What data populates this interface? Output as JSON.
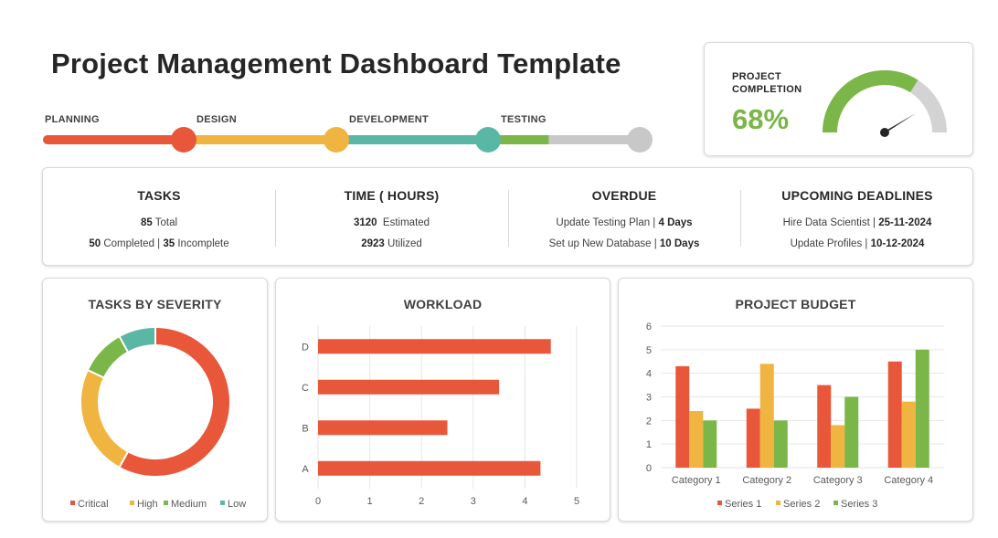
{
  "title": "Project Management Dashboard Template",
  "timeline": {
    "phases": [
      {
        "label": "PLANNING",
        "color": "#e8573a"
      },
      {
        "label": "DESIGN",
        "color": "#f0b440"
      },
      {
        "label": "DEVELOPMENT",
        "color": "#5bb7a5"
      },
      {
        "label": "TESTING",
        "color": "#7ab648"
      }
    ],
    "remaining_color": "#c8c8c8",
    "testing_progress": 0.4
  },
  "completion": {
    "title": "PROJECT COMPLETION",
    "value_text": "68%",
    "percent": 68,
    "fill_color": "#7ab648",
    "track_color": "#d3d3d3"
  },
  "stats": {
    "tasks": {
      "header": "TASKS",
      "total": "85",
      "total_label": "Total",
      "completed": "50",
      "completed_label": "Completed |",
      "incomplete": "35",
      "incomplete_label": "Incomplete"
    },
    "time": {
      "header": "TIME ( HOURS)",
      "estimated": "3120",
      "estimated_label": "Estimated",
      "utilized": "2923",
      "utilized_label": "Utilized"
    },
    "overdue": {
      "header": "OVERDUE",
      "item1": "Update Testing Plan |",
      "item1_value": "4 Days",
      "item2": "Set up New Database |",
      "item2_value": "10 Days"
    },
    "deadlines": {
      "header": "UPCOMING DEADLINES",
      "item1": "Hire Data Scientist |",
      "item1_value": "25-11-2024",
      "item2": "Update Profiles |",
      "item2_value": "10-12-2024"
    }
  },
  "chart_data": [
    {
      "type": "pie",
      "title": "TASKS BY SEVERITY",
      "donut": true,
      "legend_position": "bottom",
      "categories": [
        "Critical",
        "High",
        "Medium",
        "Low"
      ],
      "values": [
        58,
        24,
        10,
        8
      ],
      "colors": [
        "#e8573a",
        "#f0b440",
        "#7ab648",
        "#5bb7a5"
      ]
    },
    {
      "type": "bar",
      "orientation": "horizontal",
      "title": "WORKLOAD",
      "categories": [
        "A",
        "B",
        "C",
        "D"
      ],
      "values": [
        4.3,
        2.5,
        3.5,
        4.5
      ],
      "xlim": [
        0,
        5
      ],
      "ticks": [
        "0",
        "1",
        "2",
        "3",
        "4",
        "5"
      ],
      "grid": true,
      "color": "#e8573a"
    },
    {
      "type": "bar",
      "title": "PROJECT BUDGET",
      "categories": [
        "Category 1",
        "Category 2",
        "Category 3",
        "Category 4"
      ],
      "series": [
        {
          "name": "Series 1",
          "values": [
            4.3,
            2.5,
            3.5,
            4.5
          ],
          "color": "#e8573a"
        },
        {
          "name": "Series 2",
          "values": [
            2.4,
            4.4,
            1.8,
            2.8
          ],
          "color": "#f0b440"
        },
        {
          "name": "Series 3",
          "values": [
            2,
            2,
            3,
            5
          ],
          "color": "#7ab648"
        }
      ],
      "ylim": [
        0,
        6
      ],
      "ticks": [
        "0",
        "1",
        "2",
        "3",
        "4",
        "5",
        "6"
      ],
      "grid": true,
      "legend_position": "bottom"
    }
  ]
}
